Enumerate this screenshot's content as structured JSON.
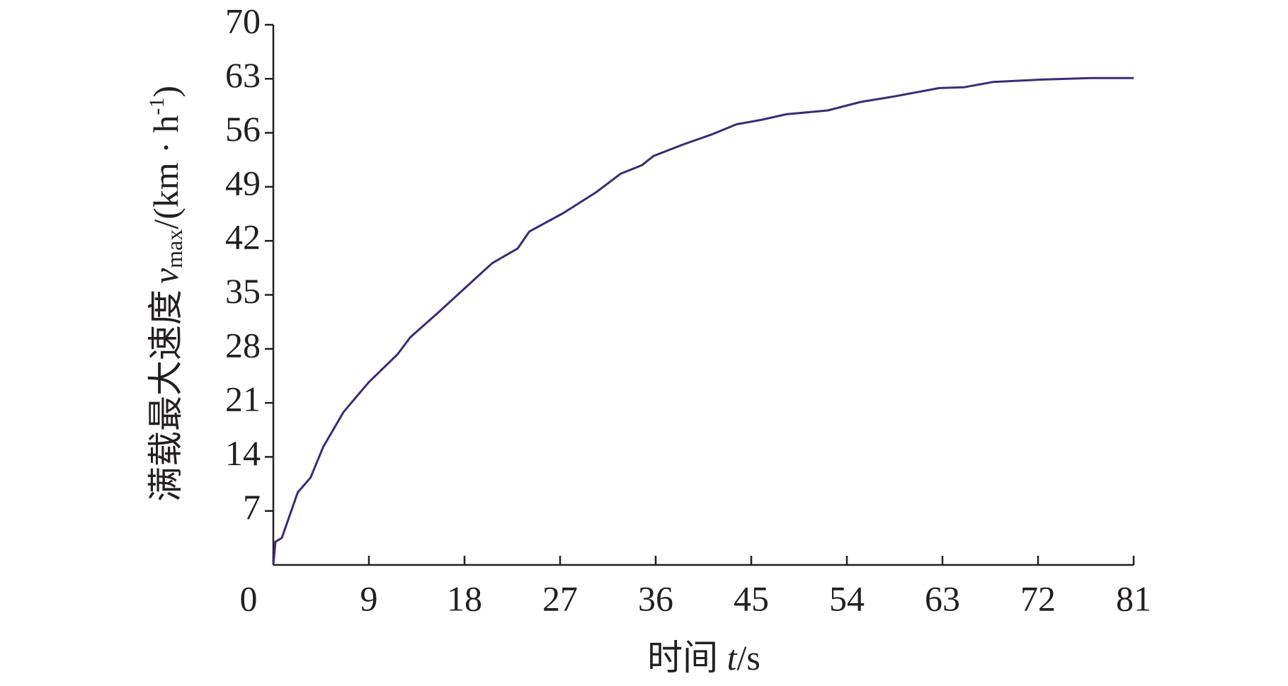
{
  "chart_data": {
    "type": "line",
    "x_label": [
      "时间 ",
      "t",
      "/s"
    ],
    "y_label": [
      "满载最大速度",
      "v",
      "max",
      "/(km · h",
      "-1",
      ")"
    ],
    "xlim": [
      0,
      81
    ],
    "ylim": [
      0,
      70
    ],
    "xticks": [
      0,
      9,
      18,
      27,
      36,
      45,
      54,
      63,
      72,
      81
    ],
    "yticks": [
      7,
      14,
      21,
      28,
      35,
      42,
      49,
      56,
      63,
      70
    ],
    "series": [
      {
        "color": "#3d2a78",
        "x": [
          0,
          0.2,
          0.8,
          2.3,
          3.5,
          4.7,
          6.6,
          9,
          11.7,
          12.9,
          15.6,
          17.9,
          20.6,
          23,
          24.1,
          27.3,
          30.4,
          32.7,
          34.7,
          35.8,
          38.6,
          41.3,
          43.6,
          46,
          48.3,
          52.2,
          55.3,
          58.4,
          62.7,
          65,
          67.8,
          72.4,
          77.1,
          81
        ],
        "values": [
          0,
          3,
          3.5,
          9.4,
          11.3,
          15.3,
          19.8,
          23.7,
          27.3,
          29.5,
          32.8,
          35.7,
          39.1,
          41,
          43.2,
          45.6,
          48.3,
          50.7,
          51.8,
          53,
          54.5,
          55.8,
          57.1,
          57.7,
          58.4,
          58.9,
          60,
          60.7,
          61.8,
          61.9,
          62.6,
          62.9,
          63.1,
          63.1
        ]
      }
    ]
  }
}
